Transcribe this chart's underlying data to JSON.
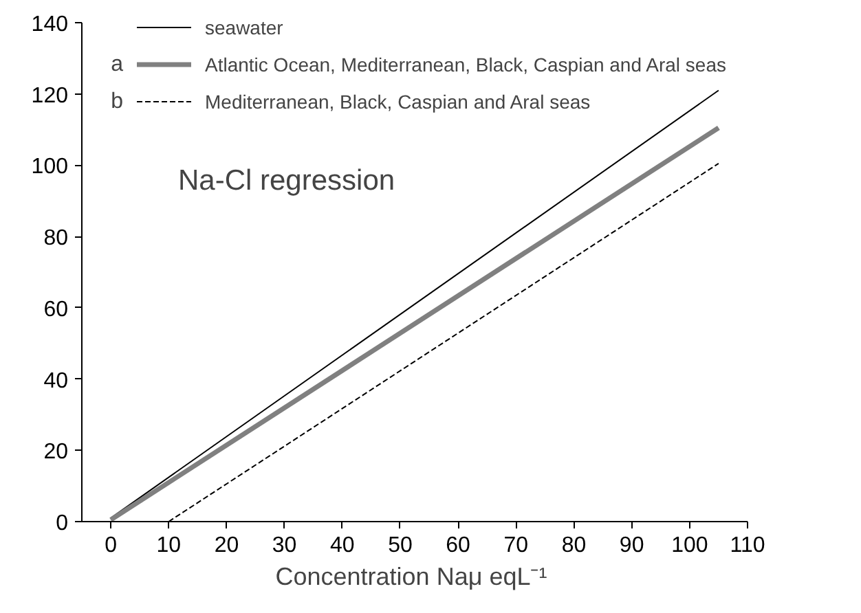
{
  "chart_data": {
    "type": "line",
    "title": "Na-Cl regression",
    "xlabel": "Concentration Naμ  eqL⁻¹",
    "series": [
      {
        "name": "seawater",
        "color": "#000000",
        "x": [
          0,
          105
        ],
        "values": [
          1,
          121
        ],
        "line_style": "solid"
      },
      {
        "name": "Atlantic Ocean, Mediterranean, Black, Caspian and Aral seas",
        "color": "#808080",
        "x": [
          0,
          105
        ],
        "values": [
          0.5,
          110.5
        ],
        "line_style": "solid"
      },
      {
        "name": "Mediterranean, Black, Caspian and Aral seas",
        "color": "#000000",
        "x": [
          10,
          105
        ],
        "values": [
          0,
          100.5
        ],
        "line_style": "dashed"
      }
    ],
    "annotations": [
      "a",
      "b"
    ],
    "xlim": [
      -5,
      110
    ],
    "ylim": [
      0,
      140
    ],
    "xticks": [
      0,
      10,
      20,
      30,
      40,
      50,
      60,
      70,
      80,
      90,
      100,
      110
    ],
    "yticks": [
      0,
      20,
      40,
      60,
      80,
      100,
      120,
      140
    ],
    "grid": false,
    "legend": "top left",
    "marker": "none"
  }
}
